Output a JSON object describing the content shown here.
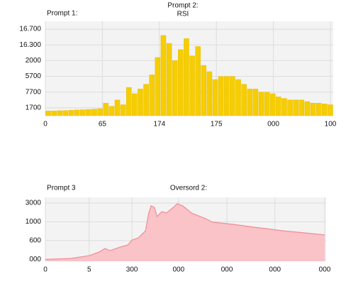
{
  "chart_data": [
    {
      "type": "bar",
      "title_left": "Prompt 1:",
      "title": "Prompt 2:",
      "subtitle": "RSI",
      "color": "#f5cd00",
      "values": [
        0.3,
        0.3,
        0.32,
        0.33,
        0.35,
        0.37,
        0.38,
        0.4,
        0.42,
        0.45,
        0.8,
        0.6,
        1.0,
        0.7,
        1.8,
        1.4,
        1.7,
        2.0,
        2.6,
        3.7,
        5.1,
        4.6,
        3.5,
        4.2,
        4.9,
        3.8,
        4.4,
        3.2,
        2.8,
        2.3,
        2.5,
        2.5,
        2.5,
        2.3,
        2.0,
        1.7,
        1.7,
        1.5,
        1.5,
        1.4,
        1.2,
        1.1,
        1.0,
        1.0,
        1.0,
        0.9,
        0.8,
        0.8,
        0.75,
        0.7
      ],
      "ylim": [
        0,
        6
      ],
      "yticks": [
        {
          "value": 0.5,
          "label": "1700"
        },
        {
          "value": 1.5,
          "label": "7700"
        },
        {
          "value": 2.5,
          "label": "5700"
        },
        {
          "value": 3.5,
          "label": "2000"
        },
        {
          "value": 4.5,
          "label": "16.300"
        },
        {
          "value": 5.5,
          "label": "16.700"
        }
      ],
      "xlim": [
        0,
        5
      ],
      "xticks": [
        0,
        {
          "value": 1,
          "label": "65"
        },
        {
          "value": 2,
          "label": "174"
        },
        {
          "value": 3,
          "label": "175"
        },
        {
          "value": 4,
          "label": "000"
        },
        {
          "value": 5,
          "label": "100"
        }
      ],
      "grid": true
    },
    {
      "type": "area",
      "title_left": "Prompt 3",
      "title": "Oversord 2:",
      "color": "#f08c96",
      "x": [
        0,
        0.55,
        0.94,
        1.16,
        1.28,
        1.39,
        1.61,
        1.77,
        1.86,
        2.0,
        2.15,
        2.22,
        2.27,
        2.34,
        2.4,
        2.5,
        2.6,
        2.75,
        2.83,
        2.95,
        3.14,
        3.44,
        3.59,
        4.05,
        4.5,
        5.11,
        5.57,
        6.0
      ],
      "values": [
        0,
        0.05,
        0.2,
        0.4,
        0.58,
        0.47,
        0.66,
        0.77,
        1.03,
        1.15,
        1.52,
        2.47,
        2.85,
        2.77,
        2.28,
        2.54,
        2.47,
        2.77,
        2.96,
        2.85,
        2.47,
        2.17,
        1.98,
        1.86,
        1.71,
        1.52,
        1.41,
        1.3
      ],
      "ylim": [
        -0.1,
        3.3
      ],
      "yticks": [
        {
          "value": 0,
          "label": "000"
        },
        {
          "value": 1,
          "label": "600"
        },
        {
          "value": 2,
          "label": "1000"
        },
        {
          "value": 3,
          "label": "3000"
        }
      ],
      "xlim": [
        0,
        6
      ],
      "xticks": [
        0,
        5,
        {
          "value": 2,
          "label": "300"
        },
        {
          "value": 3,
          "label": "000"
        },
        {
          "value": 4,
          "label": "000"
        },
        {
          "value": 5,
          "label": "000"
        },
        {
          "value": 6,
          "label": "000"
        }
      ],
      "xtick_positions": [
        0,
        0.94,
        1.86,
        2.86,
        3.9,
        4.93,
        6
      ],
      "grid": true
    }
  ]
}
